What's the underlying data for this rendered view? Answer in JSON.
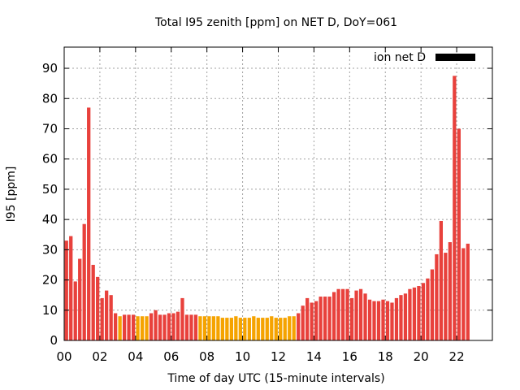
{
  "chart_data": {
    "type": "bar",
    "title": "Total I95 zenith [ppm] on NET D, DoY=061",
    "xlabel": "Time of day UTC (15-minute intervals)",
    "ylabel": "I95 [ppm]",
    "ylim": [
      0,
      97
    ],
    "xlim": [
      0,
      96
    ],
    "y_ticks": [
      0,
      10,
      20,
      30,
      40,
      50,
      60,
      70,
      80,
      90
    ],
    "x_tick_labels": [
      "00",
      "02",
      "04",
      "06",
      "08",
      "10",
      "12",
      "14",
      "16",
      "18",
      "20",
      "22"
    ],
    "x_tick_positions": [
      0,
      8,
      16,
      24,
      32,
      40,
      48,
      56,
      64,
      72,
      80,
      88
    ],
    "grid": true,
    "legend": {
      "label": "ion net D",
      "placement": "top-right",
      "color": "#000000"
    },
    "colors": {
      "high": "#e8413c",
      "low": "#f5a300"
    },
    "series": [
      {
        "values": [
          33,
          34.5,
          19.5,
          27,
          38.5,
          77,
          25,
          21,
          14,
          16.5,
          15,
          9,
          8,
          8.5,
          8.5,
          8.5,
          8,
          8,
          8,
          9,
          10,
          8.5,
          8.5,
          9,
          9,
          9.5,
          14,
          8.5,
          8.5,
          8.5,
          8,
          8,
          8,
          8,
          8,
          7.5,
          7.5,
          7.5,
          8,
          7.5,
          7.5,
          7.5,
          8,
          7.5,
          7.5,
          7.5,
          8,
          7.5,
          7.5,
          7.5,
          8,
          8,
          9,
          11.5,
          14,
          12.5,
          13,
          14.5,
          14.5,
          14.5,
          16,
          17,
          17,
          17,
          14,
          16.5,
          17,
          15.5,
          13.5,
          13,
          13,
          13.5,
          13,
          12.5,
          14,
          15,
          15.5,
          17,
          17.5,
          18,
          19,
          20.5,
          23.5,
          28.5,
          39.5,
          29,
          32.5,
          87.5,
          70,
          30.5,
          32
        ],
        "category": [
          "high",
          "high",
          "high",
          "high",
          "high",
          "high",
          "high",
          "high",
          "high",
          "high",
          "high",
          "high",
          "low",
          "high",
          "high",
          "high",
          "low",
          "low",
          "low",
          "high",
          "high",
          "high",
          "high",
          "high",
          "high",
          "high",
          "high",
          "high",
          "high",
          "high",
          "low",
          "low",
          "low",
          "low",
          "low",
          "low",
          "low",
          "low",
          "low",
          "low",
          "low",
          "low",
          "low",
          "low",
          "low",
          "low",
          "low",
          "low",
          "low",
          "low",
          "low",
          "low",
          "high",
          "high",
          "high",
          "high",
          "high",
          "high",
          "high",
          "high",
          "high",
          "high",
          "high",
          "high",
          "high",
          "high",
          "high",
          "high",
          "high",
          "high",
          "high",
          "high",
          "high",
          "high",
          "high",
          "high",
          "high",
          "high",
          "high",
          "high",
          "high",
          "high",
          "high",
          "high",
          "high",
          "high",
          "high",
          "high",
          "high",
          "high",
          "high"
        ]
      }
    ]
  }
}
